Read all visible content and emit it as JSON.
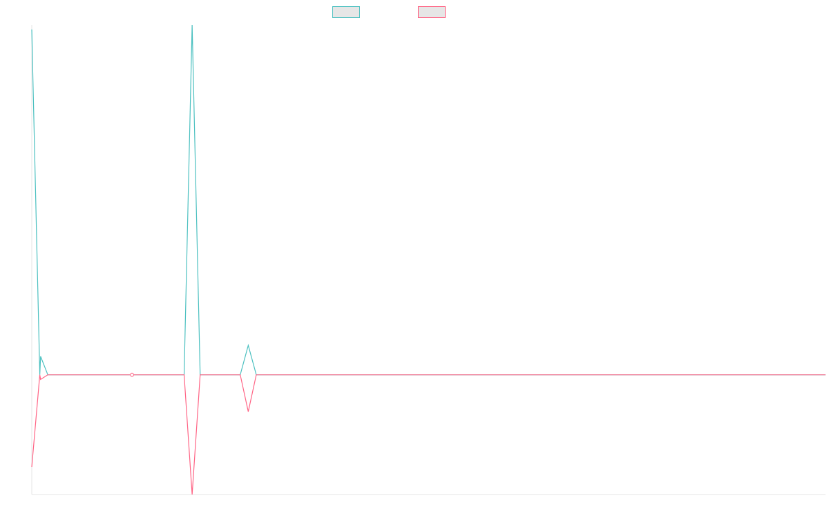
{
  "chart_data": {
    "type": "line",
    "title": "",
    "xlabel": "",
    "ylabel": "",
    "grid": false,
    "legend_position": "top-center",
    "x_count": 100,
    "ylim": [
      -13,
      38
    ],
    "series": [
      {
        "name": "",
        "color": "#4bc0c0",
        "fill": "#e6e6e6",
        "values": [
          37.5,
          0,
          0,
          0,
          0,
          0,
          0,
          0,
          0,
          0,
          0,
          0,
          0,
          0,
          0,
          0,
          0,
          0,
          0,
          0,
          38,
          0,
          0,
          0,
          0,
          0,
          0,
          3.2,
          0,
          0,
          0,
          0,
          0,
          0,
          0,
          0,
          0,
          0,
          0,
          0,
          0,
          0,
          0,
          0,
          0,
          0,
          0,
          0,
          0,
          0,
          0,
          0,
          0,
          0,
          0,
          0,
          0,
          0,
          0,
          0,
          0,
          0,
          0,
          0,
          0,
          0,
          0,
          0,
          0,
          0,
          0,
          0,
          0,
          0,
          0,
          0,
          0,
          0,
          0,
          0,
          0,
          0,
          0,
          0,
          0,
          0,
          0,
          0,
          0,
          0,
          0,
          0,
          0,
          0,
          0,
          0,
          0,
          0,
          0,
          0
        ],
        "extra_points": [
          {
            "x": 1.1,
            "y": 2.0
          }
        ]
      },
      {
        "name": "",
        "color": "#ff6384",
        "fill": "#e6e6e6",
        "values": [
          -10,
          0,
          0,
          0,
          0,
          0,
          0,
          0,
          0,
          0,
          0,
          0,
          0,
          0,
          0,
          0,
          0,
          0,
          0,
          0,
          -13,
          0,
          0,
          0,
          0,
          0,
          0,
          -4,
          0,
          0,
          0,
          0,
          0,
          0,
          0,
          0,
          0,
          0,
          0,
          0,
          0,
          0,
          0,
          0,
          0,
          0,
          0,
          0,
          0,
          0,
          0,
          0,
          0,
          0,
          0,
          0,
          0,
          0,
          0,
          0,
          0,
          0,
          0,
          0,
          0,
          0,
          0,
          0,
          0,
          0,
          0,
          0,
          0,
          0,
          0,
          0,
          0,
          0,
          0,
          0,
          0,
          0,
          0,
          0,
          0,
          0,
          0,
          0,
          0,
          0,
          0,
          0,
          0,
          0,
          0,
          0,
          0,
          0,
          0,
          0
        ],
        "extra_points": [
          {
            "x": 1.1,
            "y": -0.5
          }
        ]
      }
    ],
    "highlighted_points": [
      {
        "x": 12.5,
        "y": 0
      }
    ]
  }
}
